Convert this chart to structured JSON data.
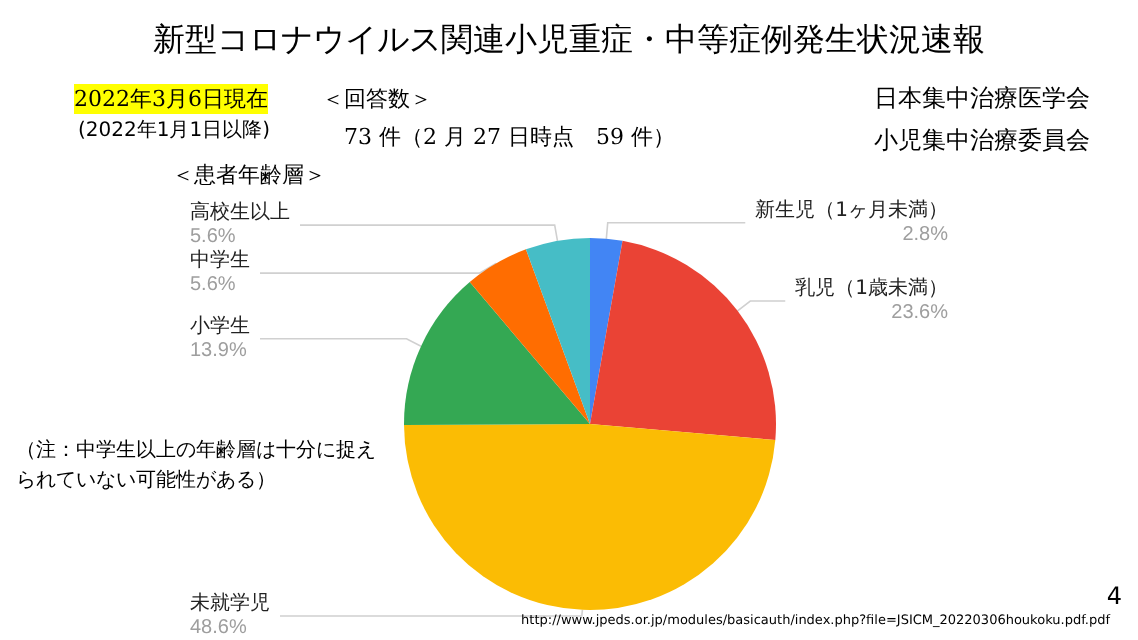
{
  "chart_data": {
    "type": "pie",
    "title": "新型コロナウイルス関連小児重症・中等症例発生状況速報",
    "subtitle": "＜患者年齢層＞",
    "categories": [
      "新生児（1ヶ月未満）",
      "乳児（1歳未満）",
      "未就学児",
      "小学生",
      "中学生",
      "高校生以上"
    ],
    "values": [
      2.8,
      23.6,
      48.6,
      13.9,
      5.6,
      5.6
    ],
    "value_labels": [
      "2.8%",
      "23.6%",
      "48.6%",
      "13.9%",
      "5.6%",
      "5.6%"
    ],
    "colors": [
      "#4285f4",
      "#ea4335",
      "#fbbc04",
      "#34a853",
      "#ff6d01",
      "#46bdc6"
    ],
    "annotations": [
      "2022年3月6日現在",
      "(2022年1月1日以降)",
      "＜回答数＞",
      "73 件（2 月 27 日時点　59 件）",
      "日本集中治療医学会",
      "小児集中治療委員会",
      "（注：中学生以上の年齢層は十分に捉えられていない可能性がある）",
      "4",
      "http://www.jpeds.or.jp/modules/basicauth/index.php?file=JSICM_20220306houkoku.pdf.pdf"
    ]
  }
}
